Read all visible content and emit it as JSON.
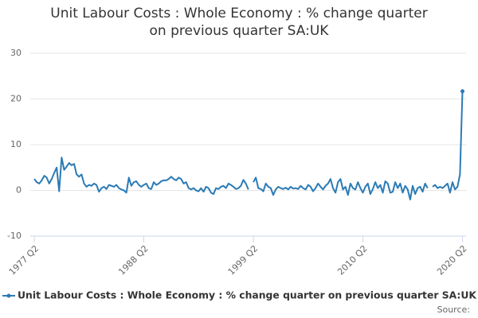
{
  "chart_data": {
    "type": "line",
    "title": "Unit Labour Costs : Whole Economy : % change quarter on previous quarter SA:UK",
    "source": "Source:",
    "categories": [
      "1977 Q2",
      null,
      null,
      null,
      null,
      null,
      null,
      null,
      null,
      null,
      null,
      null,
      null,
      null,
      null,
      null,
      null,
      null,
      null,
      null,
      null,
      null,
      null,
      null,
      null,
      null,
      null,
      null,
      null,
      null,
      null,
      null,
      null,
      null,
      null,
      null,
      null,
      null,
      null,
      null,
      null,
      null,
      null,
      null,
      "1988 Q2",
      null,
      null,
      null,
      null,
      null,
      null,
      null,
      null,
      null,
      null,
      null,
      null,
      null,
      null,
      null,
      null,
      null,
      null,
      null,
      null,
      null,
      null,
      null,
      null,
      null,
      null,
      null,
      null,
      null,
      null,
      null,
      null,
      null,
      null,
      null,
      null,
      null,
      null,
      null,
      null,
      null,
      null,
      null,
      "1999 Q2",
      null,
      null,
      null,
      null,
      null,
      null,
      null,
      null,
      null,
      null,
      null,
      null,
      null,
      null,
      null,
      null,
      null,
      null,
      null,
      null,
      null,
      null,
      null,
      null,
      null,
      null,
      null,
      null,
      null,
      null,
      null,
      null,
      null,
      null,
      null,
      null,
      null,
      null,
      null,
      null,
      null,
      null,
      null,
      "2010 Q2",
      null,
      null,
      null,
      null,
      null,
      null,
      null,
      null,
      null,
      null,
      null,
      null,
      null,
      null,
      null,
      null,
      null,
      null,
      null,
      null,
      null,
      null,
      null,
      null,
      null,
      null,
      null,
      null,
      null,
      null,
      null,
      null,
      null,
      null,
      null,
      null,
      null,
      null,
      null,
      "2020 Q2"
    ],
    "series": [
      {
        "name": "Unit Labour Costs : Whole Economy : % change quarter on previous quarter SA:UK",
        "color": "#2b7bb5",
        "values": [
          2.5,
          1.8,
          1.5,
          2.2,
          3.2,
          2.8,
          1.5,
          2.5,
          3.8,
          5.0,
          -0.2,
          7.2,
          4.5,
          5.2,
          6.0,
          5.5,
          5.8,
          3.5,
          3.0,
          3.5,
          1.5,
          0.8,
          1.2,
          1.0,
          1.5,
          1.2,
          -0.3,
          0.5,
          0.8,
          0.3,
          1.2,
          1.0,
          0.8,
          1.2,
          0.5,
          0.2,
          0.0,
          -0.5,
          2.8,
          1.0,
          1.8,
          2.0,
          1.2,
          0.8,
          1.2,
          1.5,
          0.5,
          0.3,
          1.8,
          1.2,
          1.5,
          2.0,
          2.2,
          2.2,
          2.5,
          3.0,
          2.5,
          2.2,
          2.8,
          2.5,
          1.5,
          1.8,
          0.5,
          0.2,
          0.5,
          0.0,
          -0.2,
          0.5,
          -0.3,
          0.8,
          0.5,
          -0.5,
          -0.8,
          0.5,
          0.3,
          0.8,
          1.0,
          0.5,
          1.5,
          1.2,
          0.8,
          0.3,
          0.5,
          1.0,
          2.3,
          1.5,
          0.2,
          null,
          1.8,
          2.8,
          0.5,
          0.3,
          -0.2,
          1.5,
          0.8,
          0.5,
          -1.0,
          0.2,
          0.8,
          0.5,
          0.3,
          0.6,
          0.2,
          0.8,
          0.4,
          0.5,
          0.3,
          1.0,
          0.5,
          0.2,
          1.2,
          0.8,
          -0.2,
          0.5,
          1.5,
          0.8,
          0.2,
          1.0,
          1.5,
          2.5,
          0.5,
          -0.5,
          1.8,
          2.5,
          0.2,
          0.8,
          -1.0,
          1.5,
          0.5,
          0.2,
          1.8,
          0.5,
          -0.5,
          0.8,
          1.5,
          -0.8,
          0.3,
          1.8,
          0.5,
          1.2,
          -0.5,
          2.0,
          1.5,
          -0.5,
          -0.3,
          1.8,
          0.5,
          1.5,
          -0.5,
          1.0,
          0.2,
          -2.0,
          1.0,
          -0.8,
          0.5,
          0.8,
          -0.3,
          1.5,
          0.5,
          null,
          0.8,
          1.2,
          0.5,
          0.8,
          0.5,
          1.0,
          1.5,
          -0.5,
          1.8,
          0.2,
          0.8,
          3.5,
          21.7
        ]
      }
    ],
    "ylim": [
      -10,
      30
    ],
    "yticks": [
      -10,
      0,
      10,
      20,
      30
    ],
    "grid": true
  }
}
